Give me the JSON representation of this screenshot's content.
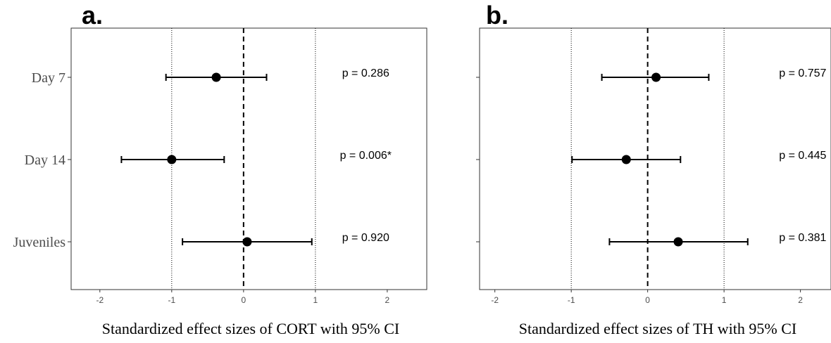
{
  "chart_data": [
    {
      "type": "scatter",
      "panel_label": "a.",
      "xlabel": "Standardized effect sizes of CORT with 95% CI",
      "xlim": [
        -2.4,
        2.55
      ],
      "xticks": [
        -2,
        -1,
        0,
        1,
        2
      ],
      "x_tick_labels": [
        "-2",
        "-1",
        "0",
        "1",
        "2"
      ],
      "reference_lines": {
        "dashed": [
          0
        ],
        "dotted": [
          -1,
          1
        ]
      },
      "categories": [
        "Day 7",
        "Day 14",
        "Juveniles"
      ],
      "estimates": [
        -0.38,
        -1.0,
        0.05
      ],
      "ci_lower": [
        -1.08,
        -1.7,
        -0.85
      ],
      "ci_upper": [
        0.32,
        -0.27,
        0.95
      ],
      "annotations": [
        "p = 0.286",
        "p = 0.006*",
        "p = 0.920"
      ],
      "annotation_x": 1.7,
      "show_category_labels": true,
      "grid": false
    },
    {
      "type": "scatter",
      "panel_label": "b.",
      "xlabel": "Standardized effect sizes of TH with 95% CI",
      "xlim": [
        -2.2,
        2.4
      ],
      "xticks": [
        -2,
        -1,
        0,
        1,
        2
      ],
      "x_tick_labels": [
        "-2",
        "-1",
        "0",
        "1",
        "2"
      ],
      "reference_lines": {
        "dashed": [
          0
        ],
        "dotted": [
          -1,
          1
        ]
      },
      "categories": [
        "Day 7",
        "Day 14",
        "Juveniles"
      ],
      "estimates": [
        0.11,
        -0.28,
        0.4
      ],
      "ci_lower": [
        -0.6,
        -0.99,
        -0.5
      ],
      "ci_upper": [
        0.8,
        0.43,
        1.31
      ],
      "annotations": [
        "p = 0.757",
        "p = 0.445",
        "p = 0.381"
      ],
      "annotation_x": 2.03,
      "show_category_labels": false,
      "grid": false
    }
  ]
}
